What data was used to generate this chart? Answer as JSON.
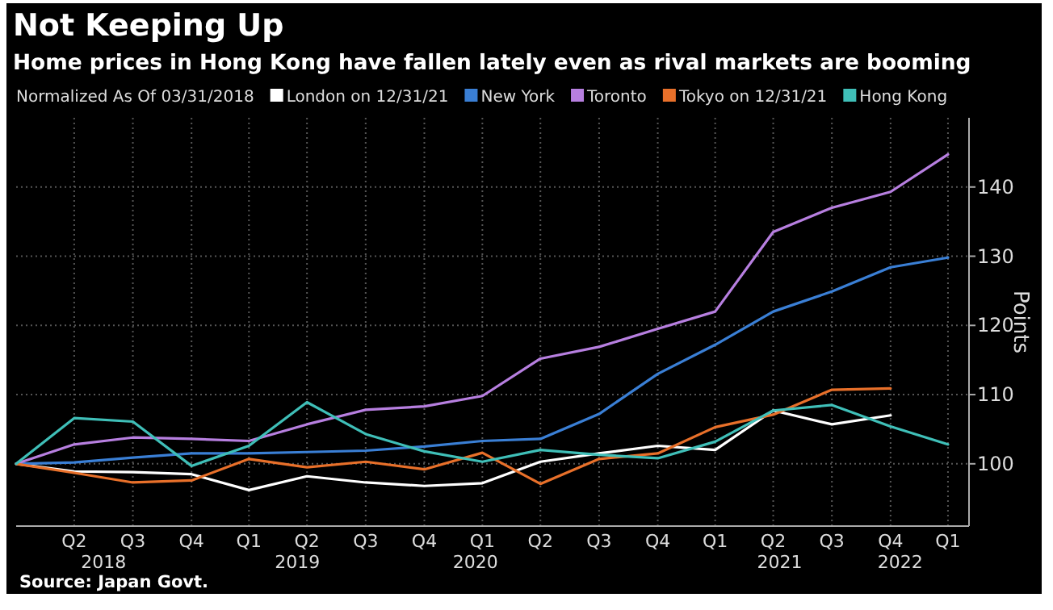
{
  "chart_data": {
    "type": "line",
    "title": "Not Keeping Up",
    "subtitle": "Home prices in Hong Kong have fallen lately even as rival markets are booming",
    "legend_title": "Normalized As Of 03/31/2018",
    "ylabel": "Points",
    "x": [
      "2018-03-31",
      "2018-06-30",
      "2018-09-30",
      "2018-12-31",
      "2019-03-31",
      "2019-06-30",
      "2019-09-30",
      "2019-12-31",
      "2020-03-31",
      "2020-06-30",
      "2020-09-30",
      "2020-12-31",
      "2021-03-31",
      "2021-06-30",
      "2021-09-30",
      "2021-12-31",
      "2022-03-31"
    ],
    "series": [
      {
        "name": "London on 12/31/21",
        "color": "#ffffff",
        "values": [
          100,
          98.9,
          98.8,
          98.5,
          96.2,
          98.2,
          97.3,
          96.8,
          97.2,
          100.3,
          101.5,
          102.6,
          102.0,
          107.7,
          105.7,
          107.0,
          null
        ]
      },
      {
        "name": "New York",
        "color": "#3a7fd5",
        "values": [
          100,
          100.2,
          100.9,
          101.5,
          101.5,
          101.7,
          101.9,
          102.5,
          103.3,
          103.6,
          107.2,
          113.0,
          117.2,
          122.0,
          124.9,
          128.4,
          129.8
        ]
      },
      {
        "name": "Toronto",
        "color": "#b77fe0",
        "values": [
          100,
          102.8,
          103.8,
          103.6,
          103.3,
          105.7,
          107.8,
          108.3,
          109.8,
          115.2,
          116.9,
          119.5,
          122.0,
          133.5,
          137.0,
          139.3,
          144.7
        ]
      },
      {
        "name": "Tokyo on 12/31/21",
        "color": "#e8702a",
        "values": [
          100,
          98.7,
          97.3,
          97.6,
          100.7,
          99.5,
          100.3,
          99.2,
          101.6,
          97.1,
          100.7,
          101.5,
          105.3,
          107.1,
          110.7,
          110.9,
          null
        ]
      },
      {
        "name": "Hong Kong",
        "color": "#3fbfb8",
        "values": [
          100,
          106.6,
          106.1,
          99.7,
          102.6,
          108.9,
          104.3,
          101.8,
          100.3,
          102.0,
          101.3,
          100.8,
          103.2,
          107.7,
          108.5,
          105.4,
          102.8
        ]
      }
    ],
    "xlim": [
      "2018-03-31",
      "2022-05-03"
    ],
    "xticks": [
      {
        "value": "2018-06-30",
        "label": "Q2"
      },
      {
        "value": "2018-09-30",
        "label": "Q3"
      },
      {
        "value": "2018-12-31",
        "label": "Q4"
      },
      {
        "value": "2019-03-31",
        "label": "Q1"
      },
      {
        "value": "2019-06-30",
        "label": "Q2"
      },
      {
        "value": "2019-09-30",
        "label": "Q3"
      },
      {
        "value": "2019-12-31",
        "label": "Q4"
      },
      {
        "value": "2020-03-31",
        "label": "Q1"
      },
      {
        "value": "2020-06-30",
        "label": "Q2"
      },
      {
        "value": "2020-09-30",
        "label": "Q3"
      },
      {
        "value": "2020-12-31",
        "label": "Q4"
      },
      {
        "value": "2021-03-31",
        "label": "Q1"
      },
      {
        "value": "2021-06-30",
        "label": "Q2"
      },
      {
        "value": "2021-09-30",
        "label": "Q3"
      },
      {
        "value": "2021-12-31",
        "label": "Q4"
      },
      {
        "value": "2022-03-31",
        "label": "Q1"
      }
    ],
    "x2lim": [
      "2018-03-31",
      "2022-05-03"
    ],
    "x2ticks": [
      {
        "value": "2018-08-15",
        "label": "2018"
      },
      {
        "value": "2019-06-15",
        "label": "2019"
      },
      {
        "value": "2020-03-20",
        "label": "2020"
      },
      {
        "value": "2021-07-10",
        "label": "2021"
      },
      {
        "value": "2022-01-15",
        "label": "2022"
      }
    ],
    "ylim": [
      91,
      150
    ],
    "yticks": [
      100,
      110,
      120,
      130,
      140
    ],
    "grid": true,
    "legend": "top",
    "annotations": [
      "Source: Japan Govt."
    ]
  }
}
